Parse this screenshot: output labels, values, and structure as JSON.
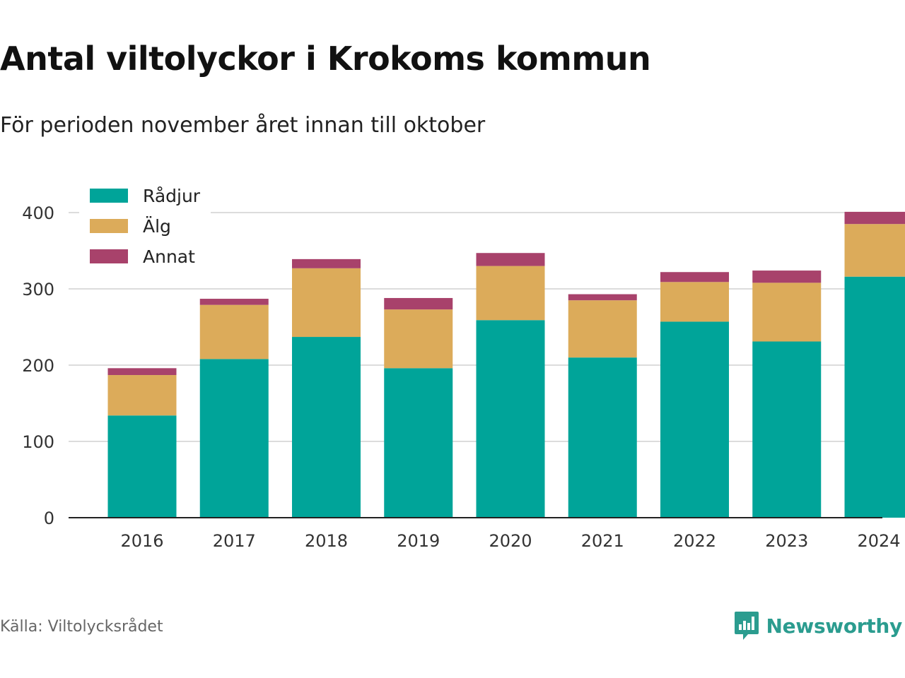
{
  "title": "Antal viltolyckor i Krokoms kommun",
  "subtitle": "För perioden november året innan till oktober",
  "source": "Källa: Viltolycksrådet",
  "brand": {
    "name": "Newsworthy",
    "icon": "newsworthy-logo-icon"
  },
  "colors": {
    "Rådjur": "#00a499",
    "Älg": "#dcab5a",
    "Annat": "#a8426b"
  },
  "chart_data": {
    "type": "bar",
    "stacked": true,
    "title": "Antal viltolyckor i Krokoms kommun",
    "subtitle": "För perioden november året innan till oktober",
    "xlabel": "",
    "ylabel": "",
    "ylim": [
      0,
      400
    ],
    "yticks": [
      0,
      100,
      200,
      300,
      400
    ],
    "grid": true,
    "legend_position": "top-left",
    "categories": [
      "2016",
      "2017",
      "2018",
      "2019",
      "2020",
      "2021",
      "2022",
      "2023",
      "2024"
    ],
    "series": [
      {
        "name": "Rådjur",
        "color": "#00a499",
        "values": [
          134,
          208,
          237,
          196,
          259,
          210,
          257,
          231,
          316
        ]
      },
      {
        "name": "Älg",
        "color": "#dcab5a",
        "values": [
          53,
          71,
          90,
          77,
          71,
          75,
          52,
          77,
          69
        ]
      },
      {
        "name": "Annat",
        "color": "#a8426b",
        "values": [
          9,
          8,
          12,
          15,
          17,
          8,
          13,
          16,
          16
        ]
      }
    ]
  }
}
